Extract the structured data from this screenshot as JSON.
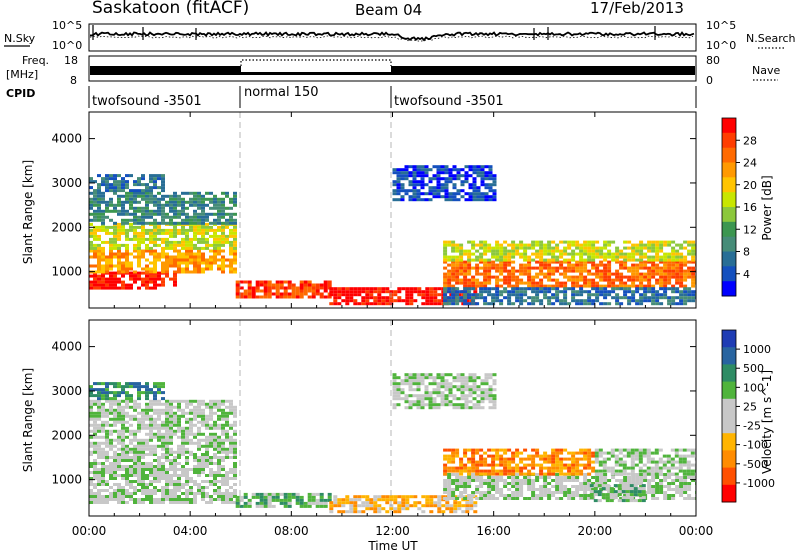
{
  "header": {
    "station": "Saskatoon (fitACF)",
    "beam": "Beam 04",
    "date": "17/Feb/2013"
  },
  "top_panels": {
    "nsky_label": "N.Sky",
    "nsky_ticks": [
      "10^5",
      "10^0"
    ],
    "nsearch_label": "N.Search",
    "nsearch_ticks": [
      "10^5",
      "10^0"
    ],
    "freq_label_1": "Freq.",
    "freq_label_2": "[MHz]",
    "freq_ticks": [
      "18",
      "8"
    ],
    "nave_label": "Nave",
    "nave_ticks": [
      "80",
      "0"
    ],
    "cpid_label": "CPID",
    "cpid_segments": [
      {
        "label": "twofsound -3501",
        "start_h": 0,
        "end_h": 6
      },
      {
        "label": "normal 150",
        "start_h": 6,
        "end_h": 12
      },
      {
        "label": "twofsound -3501",
        "start_h": 12,
        "end_h": 24
      }
    ]
  },
  "chart_data": [
    {
      "type": "heatmap",
      "name": "power",
      "ylabel": "Slant Range [km]",
      "xlabel": "Time UT",
      "xlim": [
        0,
        24
      ],
      "ylim": [
        180,
        4600
      ],
      "yticks": [
        1000,
        2000,
        3000,
        4000
      ],
      "colorbar_label": "Power [dB]",
      "colorbar_ticks": [
        "28",
        "24",
        "20",
        "16",
        "12",
        "8",
        "4"
      ],
      "colorbar_colors": [
        "#ff0000",
        "#ff3d00",
        "#ff6a00",
        "#ff9900",
        "#ffc400",
        "#c8e600",
        "#8cc83c",
        "#3c9650",
        "#468c78",
        "#286e96",
        "#1450be",
        "#0000ff"
      ],
      "data_regions": [
        {
          "t": [
            0,
            3.4
          ],
          "r": [
            600,
            1000
          ],
          "level": 0
        },
        {
          "t": [
            0,
            5.8
          ],
          "r": [
            1000,
            1500
          ],
          "level": 3
        },
        {
          "t": [
            0,
            5.8
          ],
          "r": [
            1500,
            2100
          ],
          "level": 5
        },
        {
          "t": [
            0,
            5.8
          ],
          "r": [
            2100,
            2800
          ],
          "level": 8
        },
        {
          "t": [
            0,
            3.0
          ],
          "r": [
            2800,
            3200
          ],
          "level": 9
        },
        {
          "t": [
            5.8,
            9.5
          ],
          "r": [
            450,
            800
          ],
          "level": 1
        },
        {
          "t": [
            9.5,
            15.2
          ],
          "r": [
            300,
            650
          ],
          "level": 0
        },
        {
          "t": [
            12.0,
            16.0
          ],
          "r": [
            2600,
            3400
          ],
          "level": 10
        },
        {
          "t": [
            14.0,
            24.0
          ],
          "r": [
            650,
            1250
          ],
          "level": 2
        },
        {
          "t": [
            14.0,
            24.0
          ],
          "r": [
            1250,
            1700
          ],
          "level": 5
        },
        {
          "t": [
            14.0,
            24.0
          ],
          "r": [
            300,
            650
          ],
          "level": 9
        }
      ]
    },
    {
      "type": "heatmap",
      "name": "velocity",
      "ylabel": "Slant Range [km]",
      "xlabel": "Time UT",
      "xlim": [
        0,
        24
      ],
      "ylim": [
        180,
        4600
      ],
      "yticks": [
        1000,
        2000,
        3000,
        4000
      ],
      "xticks": [
        "00:00",
        "04:00",
        "08:00",
        "12:00",
        "16:00",
        "20:00",
        "00:00"
      ],
      "colorbar_label": "Velocity [m s^-1]",
      "colorbar_ticks": [
        "1000",
        "500",
        "100",
        "25",
        "-25",
        "-100",
        "-500",
        "-1000"
      ],
      "colorbar_colors": [
        "#1e3cb4",
        "#2864a0",
        "#2e8c64",
        "#50b43c",
        "#c8c8c8",
        "#c8c8c8",
        "#ffb400",
        "#ff8c00",
        "#ff5000",
        "#ff0000"
      ],
      "data_regions": [
        {
          "t": [
            0,
            5.8
          ],
          "r": [
            500,
            1600
          ],
          "level": 4
        },
        {
          "t": [
            0,
            5.8
          ],
          "r": [
            1600,
            2800
          ],
          "level": 4
        },
        {
          "t": [
            0,
            3.0
          ],
          "r": [
            2800,
            3200
          ],
          "level": 2
        },
        {
          "t": [
            5.8,
            9.5
          ],
          "r": [
            400,
            700
          ],
          "level": 3
        },
        {
          "t": [
            9.5,
            15.2
          ],
          "r": [
            300,
            650
          ],
          "level": 6
        },
        {
          "t": [
            12.0,
            16.0
          ],
          "r": [
            2600,
            3400
          ],
          "level": 4
        },
        {
          "t": [
            14.0,
            24.0
          ],
          "r": [
            600,
            1150
          ],
          "level": 4
        },
        {
          "t": [
            14.0,
            20.0
          ],
          "r": [
            1150,
            1700
          ],
          "level": 7
        },
        {
          "t": [
            20.0,
            24.0
          ],
          "r": [
            1150,
            1700
          ],
          "level": 4
        },
        {
          "t": [
            19.8,
            22.0
          ],
          "r": [
            500,
            900
          ],
          "level": 3
        }
      ]
    }
  ]
}
